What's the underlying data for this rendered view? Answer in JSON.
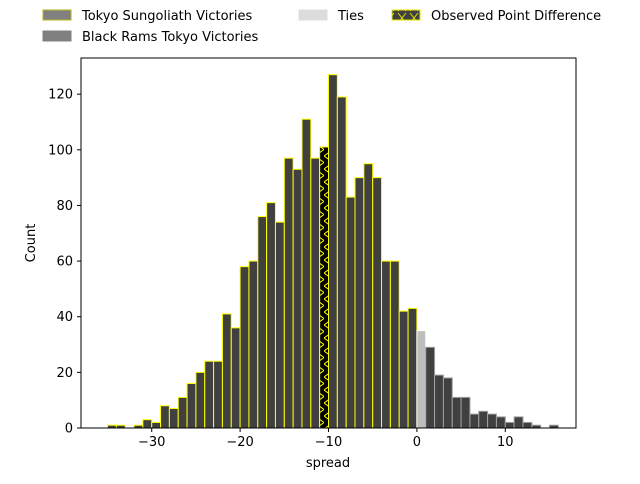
{
  "chart_data": {
    "type": "bar",
    "title": "",
    "xlabel": "spread",
    "ylabel": "Count",
    "xlim": [
      -38,
      18
    ],
    "ylim": [
      0,
      133
    ],
    "xticks": [
      -30,
      -20,
      -10,
      0,
      10
    ],
    "xtick_labels": [
      "−30",
      "−20",
      "−10",
      "0",
      "10"
    ],
    "yticks": [
      0,
      20,
      40,
      60,
      80,
      100,
      120
    ],
    "ytick_labels": [
      "0",
      "20",
      "40",
      "60",
      "80",
      "100",
      "120"
    ],
    "bin_width": 1,
    "grid": false,
    "legend_position": "top",
    "legend": [
      {
        "name": "Tokyo Sungoliath Victories",
        "fill": "#808080",
        "edge": "#b5b51f"
      },
      {
        "name": "Black Rams Tokyo Victories",
        "fill": "#808080",
        "edge": "#808080"
      },
      {
        "name": "Ties",
        "fill": "#dcdcdc",
        "edge": "#dcdcdc"
      },
      {
        "name": "Observed Point Difference",
        "fill": "#404040",
        "edge": "#e6e600",
        "hatch": "x"
      }
    ],
    "series": [
      {
        "name": "Tokyo Sungoliath Victories",
        "fill": "#404040",
        "edge": "#ffff00",
        "bin_left": [
          -35,
          -34,
          -33,
          -32,
          -31,
          -30,
          -29,
          -28,
          -27,
          -26,
          -25,
          -24,
          -23,
          -22,
          -21,
          -20,
          -19,
          -18,
          -17,
          -16,
          -15,
          -14,
          -13,
          -12,
          -11,
          -10,
          -9,
          -8,
          -7,
          -6,
          -5,
          -4,
          -3,
          -2,
          -1
        ],
        "values": [
          1,
          1,
          0,
          1,
          3,
          2,
          8,
          7,
          11,
          16,
          20,
          24,
          24,
          41,
          36,
          58,
          60,
          76,
          81,
          74,
          97,
          93,
          111,
          97,
          101,
          127,
          119,
          83,
          90,
          95,
          90,
          60,
          60,
          42,
          43
        ]
      },
      {
        "name": "Ties",
        "fill": "#bdbdbd",
        "edge": "#ffffff",
        "bin_left": [
          0
        ],
        "values": [
          35
        ]
      },
      {
        "name": "Black Rams Tokyo Victories",
        "fill": "#404040",
        "edge": "#a0a0a0",
        "bin_left": [
          1,
          2,
          3,
          4,
          5,
          6,
          7,
          8,
          9,
          10,
          11,
          12,
          13,
          14,
          15
        ],
        "values": [
          29,
          19,
          18,
          11,
          11,
          5,
          6,
          5,
          4,
          2,
          4,
          2,
          1,
          0,
          1
        ]
      }
    ],
    "observed": {
      "name": "Observed Point Difference",
      "bin_left": -11,
      "value": 101
    }
  }
}
